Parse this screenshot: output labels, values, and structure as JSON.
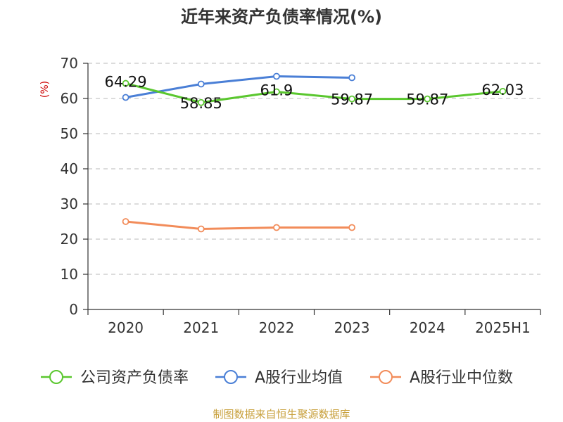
{
  "chart_data": {
    "type": "line",
    "title": "近年来资产负债率情况(%)",
    "ylabel": "(%)",
    "categories": [
      "2020",
      "2021",
      "2022",
      "2023",
      "2024",
      "2025H1"
    ],
    "ylim": [
      0,
      70
    ],
    "yticks": [
      0,
      10,
      20,
      30,
      40,
      50,
      60,
      70
    ],
    "grid": true,
    "legend_position": "bottom",
    "series": [
      {
        "name": "公司资产负债率",
        "color": "#5ac72e",
        "values": [
          64.29,
          58.85,
          61.9,
          59.87,
          59.87,
          62.03
        ],
        "labels": [
          "64.29",
          "58.85",
          "61.9",
          "59.87",
          "59.87",
          "62.03"
        ]
      },
      {
        "name": "A股行业均值",
        "color": "#4a7fd6",
        "values": [
          60.3,
          64.1,
          66.3,
          65.9,
          null,
          null
        ]
      },
      {
        "name": "A股行业中位数",
        "color": "#f28c5a",
        "values": [
          25.0,
          22.9,
          23.3,
          23.3,
          null,
          null
        ]
      }
    ],
    "source": "制图数据来自恒生聚源数据库"
  }
}
